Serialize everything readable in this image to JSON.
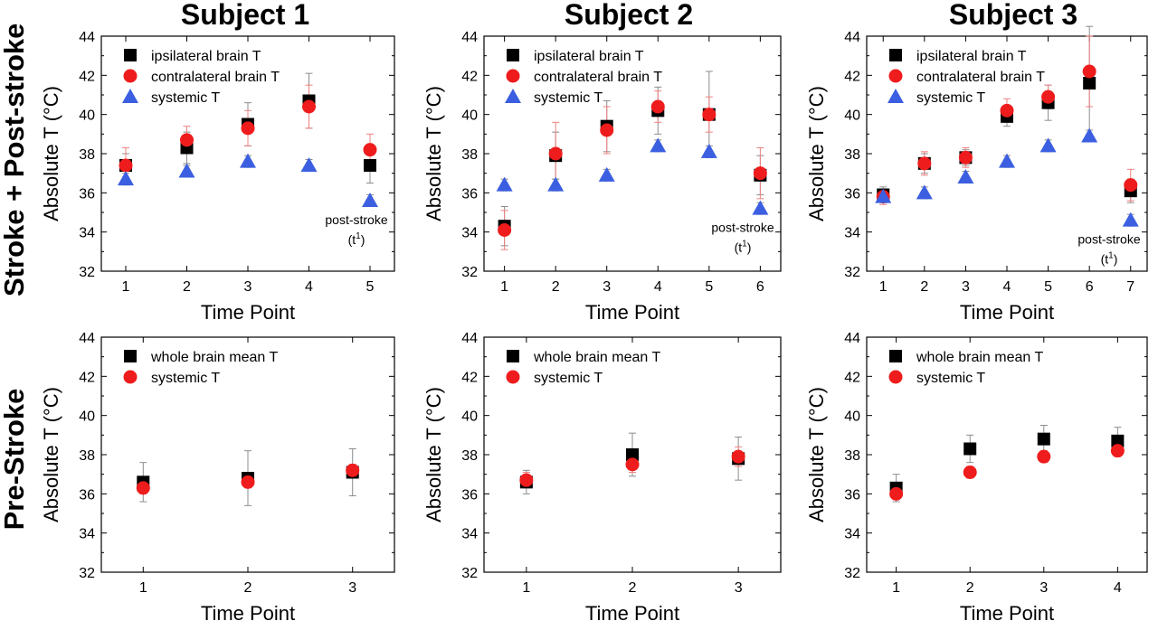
{
  "column_titles": [
    "Subject 1",
    "Subject 2",
    "Subject 3"
  ],
  "row_titles": [
    "Stroke + Post-stroke",
    "Pre-Stroke"
  ],
  "colors": {
    "ipsilateral": "#000000",
    "contralateral": "#ee1c1c",
    "systemic_top": "#3b5fe0",
    "whole_brain": "#000000",
    "systemic_bottom": "#ee1c1c",
    "err_black": "#8c8c8c",
    "err_red": "#f08080"
  },
  "chart_data": [
    {
      "type": "scatter",
      "panel": "Stroke + Post-stroke / Subject 1",
      "xlabel": "Time Point",
      "ylabel": "Absolute T (°C)",
      "ylim": [
        32,
        44
      ],
      "yticks": [
        32,
        34,
        36,
        38,
        40,
        42,
        44
      ],
      "xlim": [
        0.6,
        5.4
      ],
      "xticks": [
        1,
        2,
        3,
        4,
        5
      ],
      "legend_position": "top-left",
      "annotation": {
        "text": "post-stroke",
        "sub": "(t",
        "sup": "1",
        "close": ")",
        "x": 5
      },
      "series": [
        {
          "name": "ipsilateral brain T",
          "marker": "square",
          "color": "#000000",
          "err_color": "#8c8c8c",
          "x": [
            1,
            2,
            3,
            4,
            5
          ],
          "y": [
            37.4,
            38.3,
            39.5,
            40.7,
            37.4
          ],
          "err": [
            0.6,
            0.8,
            1.1,
            1.4,
            0.9
          ]
        },
        {
          "name": "contralateral brain T",
          "marker": "circle",
          "color": "#ee1c1c",
          "err_color": "#f08080",
          "x": [
            1,
            2,
            3,
            4,
            5
          ],
          "y": [
            37.4,
            38.7,
            39.3,
            40.4,
            38.2
          ],
          "err": [
            0.9,
            0.7,
            0.9,
            1.1,
            0.8
          ]
        },
        {
          "name": "systemic T",
          "marker": "triangle",
          "color": "#3b5fe0",
          "err_color": "#8c8c8c",
          "x": [
            1,
            2,
            3,
            4,
            5
          ],
          "y": [
            36.7,
            37.1,
            37.6,
            37.4,
            35.6
          ],
          "err": [
            0.3,
            0.3,
            0.3,
            0.3,
            0.3
          ]
        }
      ]
    },
    {
      "type": "scatter",
      "panel": "Stroke + Post-stroke / Subject 2",
      "xlabel": "Time Point",
      "ylabel": "Absolute T (°C)",
      "ylim": [
        32,
        44
      ],
      "yticks": [
        32,
        34,
        36,
        38,
        40,
        42,
        44
      ],
      "xlim": [
        0.6,
        6.4
      ],
      "xticks": [
        1,
        2,
        3,
        4,
        5,
        6
      ],
      "legend_position": "top-left",
      "annotation": {
        "text": "post-stroke",
        "sub": "(t",
        "sup": "1",
        "close": ")",
        "x": 6
      },
      "series": [
        {
          "name": "ipsilateral brain T",
          "marker": "square",
          "color": "#000000",
          "err_color": "#8c8c8c",
          "x": [
            1,
            2,
            3,
            4,
            5,
            6
          ],
          "y": [
            34.3,
            37.9,
            39.4,
            40.2,
            40.0,
            36.9
          ],
          "err": [
            1.0,
            1.2,
            1.3,
            1.2,
            2.2,
            1.0
          ]
        },
        {
          "name": "contralateral brain T",
          "marker": "circle",
          "color": "#ee1c1c",
          "err_color": "#f08080",
          "x": [
            1,
            2,
            3,
            4,
            5,
            6
          ],
          "y": [
            34.1,
            38.0,
            39.2,
            40.4,
            40.0,
            37.0
          ],
          "err": [
            1.0,
            1.6,
            1.2,
            0.8,
            0.9,
            1.3
          ]
        },
        {
          "name": "systemic T",
          "marker": "triangle",
          "color": "#3b5fe0",
          "err_color": "#8c8c8c",
          "x": [
            1,
            2,
            3,
            4,
            5,
            6
          ],
          "y": [
            36.4,
            36.4,
            36.9,
            38.4,
            38.1,
            35.2
          ],
          "err": [
            0.3,
            0.3,
            0.3,
            0.3,
            0.3,
            0.3
          ]
        }
      ]
    },
    {
      "type": "scatter",
      "panel": "Stroke + Post-stroke / Subject 3",
      "xlabel": "Time Point",
      "ylabel": "Absolute T (°C)",
      "ylim": [
        32,
        44
      ],
      "yticks": [
        32,
        34,
        36,
        38,
        40,
        42,
        44
      ],
      "xlim": [
        0.6,
        7.4
      ],
      "xticks": [
        1,
        2,
        3,
        4,
        5,
        6,
        7
      ],
      "legend_position": "top-left",
      "annotation": {
        "text": "post-stroke",
        "sub": "(t",
        "sup": "1",
        "close": ")",
        "x": 7
      },
      "series": [
        {
          "name": "ipsilateral brain T",
          "marker": "square",
          "color": "#000000",
          "err_color": "#8c8c8c",
          "x": [
            1,
            2,
            3,
            4,
            5,
            6,
            7
          ],
          "y": [
            35.9,
            37.5,
            37.8,
            39.9,
            40.6,
            41.6,
            36.1
          ],
          "err": [
            0.4,
            0.5,
            0.4,
            0.5,
            0.9,
            2.9,
            0.6
          ]
        },
        {
          "name": "contralateral brain T",
          "marker": "circle",
          "color": "#ee1c1c",
          "err_color": "#f08080",
          "x": [
            1,
            2,
            3,
            4,
            5,
            6,
            7
          ],
          "y": [
            35.8,
            37.5,
            37.8,
            40.2,
            40.9,
            42.2,
            36.4
          ],
          "err": [
            0.4,
            0.6,
            0.5,
            0.6,
            0.6,
            1.8,
            0.8
          ]
        },
        {
          "name": "systemic T",
          "marker": "triangle",
          "color": "#3b5fe0",
          "err_color": "#8c8c8c",
          "x": [
            1,
            2,
            3,
            4,
            5,
            6,
            7
          ],
          "y": [
            35.8,
            36.0,
            36.8,
            37.6,
            38.4,
            38.9,
            34.6
          ],
          "err": [
            0.3,
            0.3,
            0.3,
            0.3,
            0.3,
            0.3,
            0.3
          ]
        }
      ]
    },
    {
      "type": "scatter",
      "panel": "Pre-Stroke / Subject 1",
      "xlabel": "Time Point",
      "ylabel": "Absolute T (°C)",
      "ylim": [
        32,
        44
      ],
      "yticks": [
        32,
        34,
        36,
        38,
        40,
        42,
        44
      ],
      "xlim": [
        0.6,
        3.4
      ],
      "xticks": [
        1,
        2,
        3
      ],
      "legend_position": "top-left",
      "series": [
        {
          "name": "whole brain mean T",
          "marker": "square",
          "color": "#000000",
          "err_color": "#8c8c8c",
          "x": [
            1,
            2,
            3
          ],
          "y": [
            36.6,
            36.8,
            37.1
          ],
          "err": [
            1.0,
            1.4,
            1.2
          ]
        },
        {
          "name": "systemic T",
          "marker": "circle",
          "color": "#ee1c1c",
          "err_color": "#f08080",
          "x": [
            1,
            2,
            3
          ],
          "y": [
            36.3,
            36.6,
            37.2
          ],
          "err": [
            0.3,
            0.3,
            0.3
          ]
        }
      ]
    },
    {
      "type": "scatter",
      "panel": "Pre-Stroke / Subject 2",
      "xlabel": "Time Point",
      "ylabel": "Absolute T (°C)",
      "ylim": [
        32,
        44
      ],
      "yticks": [
        32,
        34,
        36,
        38,
        40,
        42,
        44
      ],
      "xlim": [
        0.6,
        3.4
      ],
      "xticks": [
        1,
        2,
        3
      ],
      "legend_position": "top-left",
      "series": [
        {
          "name": "whole brain mean T",
          "marker": "square",
          "color": "#000000",
          "err_color": "#8c8c8c",
          "x": [
            1,
            2,
            3
          ],
          "y": [
            36.6,
            38.0,
            37.8
          ],
          "err": [
            0.6,
            1.1,
            1.1
          ]
        },
        {
          "name": "systemic T",
          "marker": "circle",
          "color": "#ee1c1c",
          "err_color": "#f08080",
          "x": [
            1,
            2,
            3
          ],
          "y": [
            36.7,
            37.5,
            37.9
          ],
          "err": [
            0.4,
            0.4,
            0.5
          ]
        }
      ]
    },
    {
      "type": "scatter",
      "panel": "Pre-Stroke / Subject 3",
      "xlabel": "Time Point",
      "ylabel": "Absolute T (°C)",
      "ylim": [
        32,
        44
      ],
      "yticks": [
        32,
        34,
        36,
        38,
        40,
        42,
        44
      ],
      "xlim": [
        0.6,
        4.4
      ],
      "xticks": [
        1,
        2,
        3,
        4
      ],
      "legend_position": "top-left",
      "series": [
        {
          "name": "whole brain mean T",
          "marker": "square",
          "color": "#000000",
          "err_color": "#8c8c8c",
          "x": [
            1,
            2,
            3,
            4
          ],
          "y": [
            36.3,
            38.3,
            38.8,
            38.7
          ],
          "err": [
            0.7,
            0.7,
            0.7,
            0.7
          ]
        },
        {
          "name": "systemic T",
          "marker": "circle",
          "color": "#ee1c1c",
          "err_color": "#f08080",
          "x": [
            1,
            2,
            3,
            4
          ],
          "y": [
            36.0,
            37.1,
            37.9,
            38.2
          ],
          "err": [
            0.3,
            0.3,
            0.3,
            0.3
          ]
        }
      ]
    }
  ]
}
